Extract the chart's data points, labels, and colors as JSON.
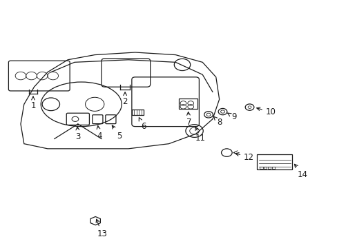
{
  "background_color": "#ffffff",
  "line_color": "#1a1a1a",
  "label_fontsize": 8.5,
  "fig_width": 4.89,
  "fig_height": 3.6,
  "dpi": 100
}
